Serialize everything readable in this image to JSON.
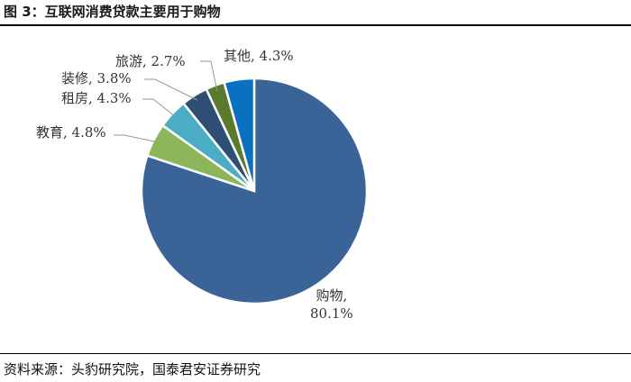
{
  "chart_data": {
    "type": "pie",
    "title": "图 3：互联网消费贷款主要用于购物",
    "source": "资料来源：头豹研究院，国泰君安证券研究",
    "values": [
      80.1,
      4.8,
      4.3,
      3.8,
      2.7,
      4.3
    ],
    "value_labels": [
      "购物,\n80.1%",
      "教育, 4.8%",
      "租房, 4.3%",
      "装修, 3.8%",
      "旅游, 2.7%",
      "其他, 4.3%"
    ],
    "colors": [
      "#3a6497",
      "#8db65a",
      "#4bacc6",
      "#2f4e74",
      "#5a7a2f",
      "#0a70c0"
    ]
  }
}
